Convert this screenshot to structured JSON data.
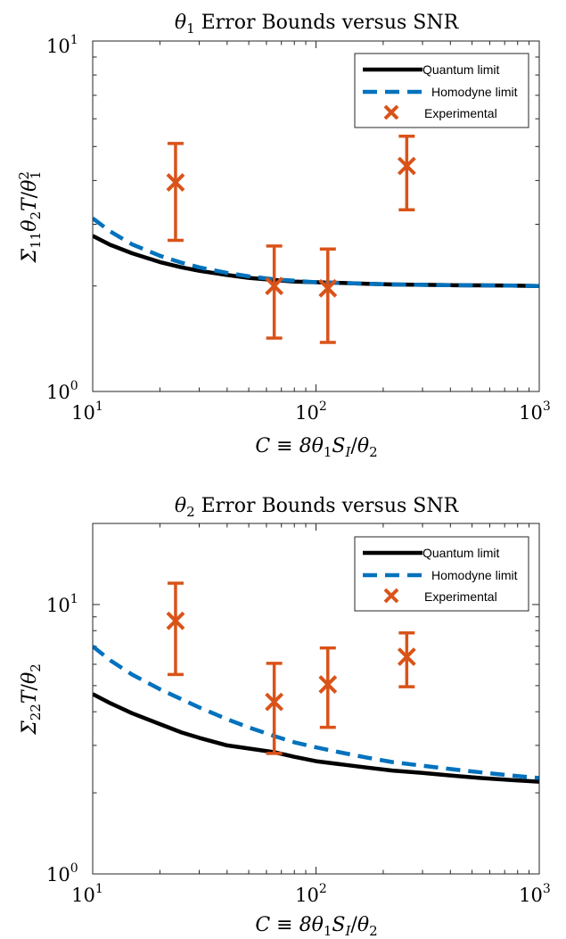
{
  "chart_data": [
    {
      "type": "line",
      "title": "θ₁ Error Bounds versus SNR",
      "xlabel": "C ≡ 8θ₁S_I/θ₂",
      "ylabel": "Σ₁₁θ₂T/θ₁²",
      "xscale": "log",
      "yscale": "log",
      "xlim": [
        10,
        1000
      ],
      "ylim": [
        1,
        10
      ],
      "xticks": [
        10,
        100,
        1000
      ],
      "yticks": [
        1,
        10
      ],
      "grid": false,
      "legend_position": "top-right",
      "series": [
        {
          "name": "Quantum limit",
          "style": "solid",
          "color": "#000000",
          "x": [
            10,
            12,
            15,
            20,
            25,
            30,
            40,
            50,
            65,
            80,
            100,
            130,
            170,
            220,
            300,
            400,
            550,
            750,
            1000
          ],
          "y": [
            2.78,
            2.62,
            2.48,
            2.34,
            2.26,
            2.21,
            2.15,
            2.11,
            2.08,
            2.06,
            2.05,
            2.04,
            2.03,
            2.02,
            2.015,
            2.01,
            2.008,
            2.005,
            2.0
          ]
        },
        {
          "name": "Homodyne limit",
          "style": "dashed",
          "color": "#0072BD",
          "x": [
            10,
            12,
            15,
            20,
            25,
            30,
            40,
            50,
            65,
            80,
            100,
            130,
            170,
            220,
            300,
            400,
            550,
            750,
            1000
          ],
          "y": [
            3.12,
            2.86,
            2.63,
            2.44,
            2.33,
            2.26,
            2.18,
            2.13,
            2.09,
            2.07,
            2.05,
            2.04,
            2.03,
            2.02,
            2.015,
            2.01,
            2.008,
            2.005,
            2.0
          ]
        },
        {
          "name": "Experimental",
          "style": "errorbar",
          "color": "#D95319",
          "x": [
            23.5,
            65,
            113,
            255
          ],
          "y": [
            3.95,
            2.0,
            1.97,
            4.4
          ],
          "ylow": [
            2.7,
            1.42,
            1.38,
            3.3
          ],
          "yhigh": [
            5.1,
            2.6,
            2.55,
            5.35
          ]
        }
      ]
    },
    {
      "type": "line",
      "title": "θ₂ Error Bounds versus SNR",
      "xlabel": "C ≡ 8θ₁S_I/θ₂",
      "ylabel": "Σ₂₂T/θ₂",
      "xscale": "log",
      "yscale": "log",
      "xlim": [
        10,
        1000
      ],
      "ylim": [
        1,
        20
      ],
      "xticks": [
        10,
        100,
        1000
      ],
      "yticks": [
        1,
        10
      ],
      "grid": false,
      "legend_position": "top-right",
      "series": [
        {
          "name": "Quantum limit",
          "style": "solid",
          "color": "#000000",
          "x": [
            10,
            12,
            15,
            20,
            25,
            30,
            40,
            50,
            65,
            80,
            100,
            130,
            170,
            220,
            300,
            400,
            550,
            750,
            1000
          ],
          "y": [
            4.65,
            4.3,
            3.95,
            3.6,
            3.35,
            3.2,
            3.0,
            2.92,
            2.83,
            2.72,
            2.62,
            2.55,
            2.48,
            2.42,
            2.37,
            2.32,
            2.27,
            2.23,
            2.2
          ]
        },
        {
          "name": "Homodyne limit",
          "style": "dashed",
          "color": "#0072BD",
          "x": [
            10,
            12,
            15,
            20,
            25,
            30,
            40,
            50,
            65,
            80,
            100,
            130,
            170,
            220,
            300,
            400,
            550,
            750,
            1000
          ],
          "y": [
            7.0,
            6.2,
            5.5,
            4.85,
            4.45,
            4.15,
            3.75,
            3.5,
            3.25,
            3.08,
            2.95,
            2.82,
            2.7,
            2.6,
            2.52,
            2.45,
            2.38,
            2.32,
            2.27
          ]
        },
        {
          "name": "Experimental",
          "style": "errorbar",
          "color": "#D95319",
          "x": [
            23.5,
            65,
            113,
            255
          ],
          "y": [
            8.7,
            4.35,
            5.05,
            6.4
          ],
          "ylow": [
            5.5,
            2.8,
            3.5,
            4.95
          ],
          "yhigh": [
            12.0,
            6.05,
            6.9,
            7.85
          ]
        }
      ]
    }
  ]
}
